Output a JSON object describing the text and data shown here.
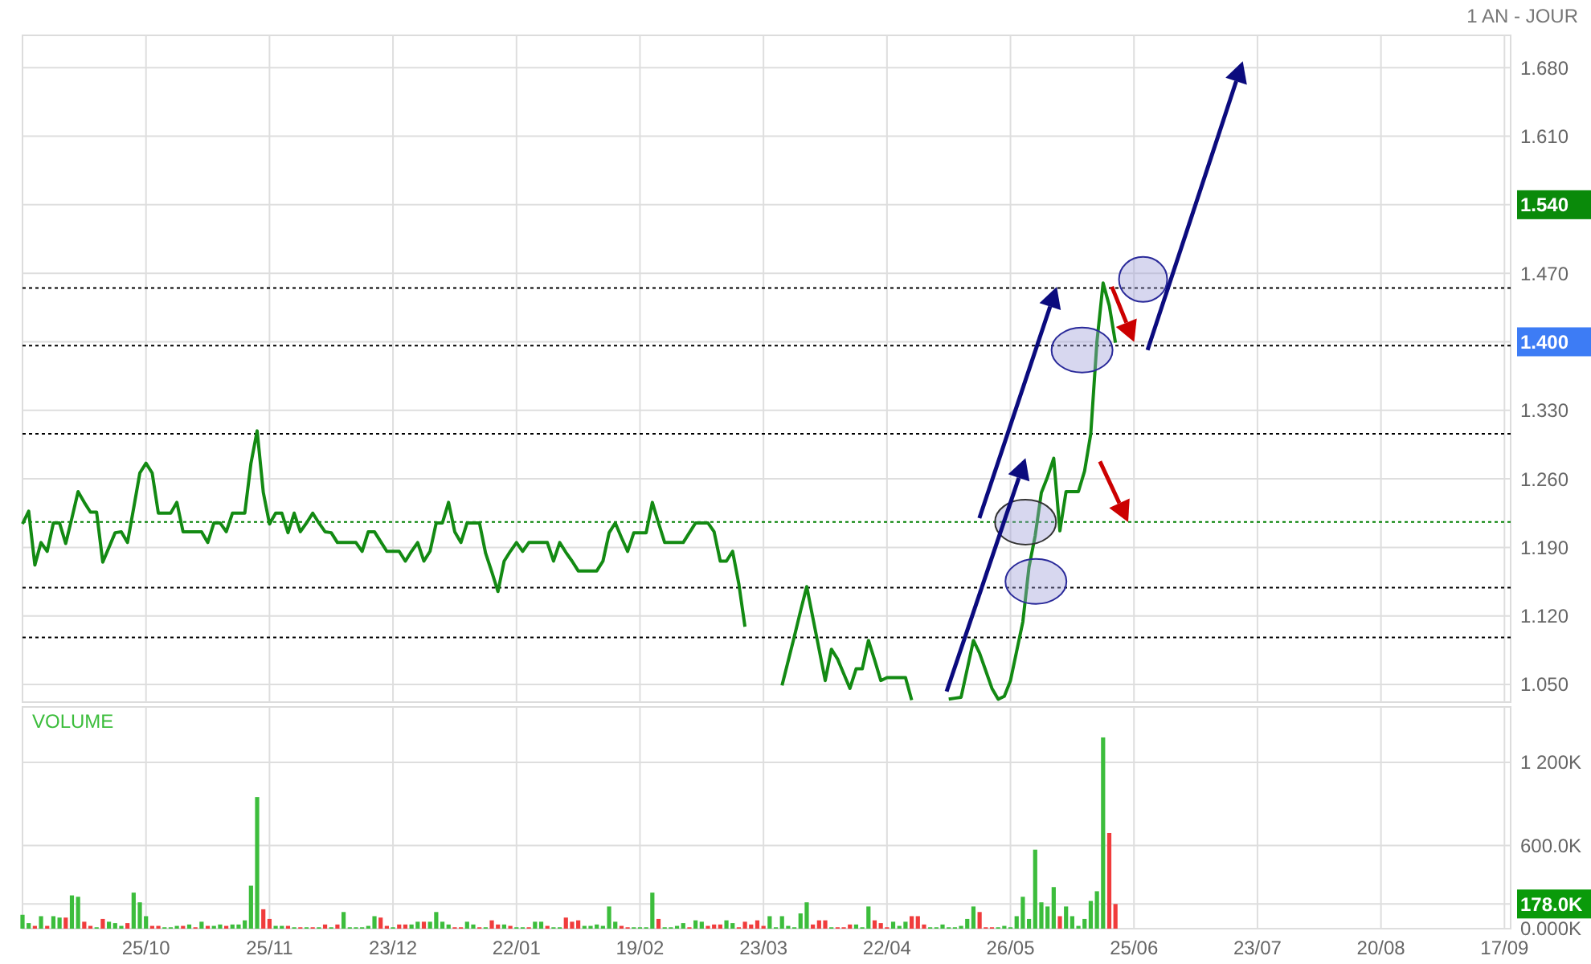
{
  "chart_data": [
    {
      "type": "line",
      "subtitle": "1 AN - JOUR",
      "color": "#138a13",
      "line_style": "solid",
      "grid": true,
      "tick_labels": "y",
      "categories": [
        null,
        null,
        null,
        null,
        null,
        null,
        null,
        null,
        null,
        null,
        null,
        null,
        null,
        null,
        null,
        null,
        null,
        null,
        null,
        null,
        null,
        null,
        null,
        null,
        null,
        null,
        null,
        null,
        null,
        null,
        null,
        null,
        null,
        null,
        null,
        null,
        null,
        null,
        null,
        null,
        null,
        null,
        null,
        null,
        null,
        null,
        null,
        null,
        null,
        null,
        null,
        null,
        null,
        null,
        null,
        null,
        null,
        null,
        null,
        null,
        null,
        null,
        null,
        null,
        null,
        null,
        null,
        null,
        null,
        null,
        null,
        null,
        null,
        null,
        null,
        null,
        null,
        null,
        null,
        null,
        null,
        null,
        null,
        null,
        null,
        null,
        null,
        null,
        null,
        null,
        null,
        null,
        null,
        null,
        null,
        null,
        null,
        null,
        null,
        null,
        null,
        null,
        null,
        null,
        null,
        null,
        null,
        null,
        null,
        null,
        null,
        null,
        null,
        null,
        null,
        null,
        null,
        null,
        null,
        null,
        null,
        null,
        null,
        null,
        null,
        null,
        null,
        null,
        null,
        null,
        null,
        null,
        null,
        null,
        null,
        null,
        null,
        null,
        null,
        null,
        null,
        null,
        null,
        null,
        null,
        null,
        null,
        null,
        null,
        null,
        null,
        null,
        null,
        null,
        null,
        null,
        null,
        null,
        null,
        null,
        null,
        null,
        null,
        null,
        null,
        null,
        null,
        null,
        null,
        null,
        null,
        null,
        null,
        null,
        null,
        null,
        null,
        null,
        null,
        null,
        null,
        null,
        null,
        null,
        null,
        null,
        null,
        null,
        null,
        null,
        null,
        null,
        null,
        null,
        null,
        null,
        null,
        null,
        null,
        null,
        null,
        null,
        null,
        null,
        null,
        null,
        null,
        null,
        null,
        null,
        null,
        null,
        null,
        null,
        null,
        null,
        null,
        null,
        null,
        null,
        null,
        null,
        null,
        null,
        null,
        null,
        null,
        null,
        null,
        null,
        null,
        null,
        null,
        null,
        null,
        null,
        null,
        null,
        null,
        null,
        null,
        null
      ],
      "ylim": [
        1.032,
        1.713
      ],
      "yticks": [
        {
          "value": 1.05,
          "label": "1.050"
        },
        {
          "value": 1.12,
          "label": "1.120"
        },
        {
          "value": 1.19,
          "label": "1.190"
        },
        {
          "value": 1.26,
          "label": "1.260"
        },
        {
          "value": 1.33,
          "label": "1.330"
        },
        {
          "value": 1.4,
          "label": "1.400"
        },
        {
          "value": 1.47,
          "label": "1.470"
        },
        {
          "value": 1.54,
          "label": "1.540"
        },
        {
          "value": 1.61,
          "label": "1.610"
        },
        {
          "value": 1.68,
          "label": "1.680"
        }
      ],
      "values": [
        1.214,
        1.227,
        1.172,
        1.195,
        1.186,
        1.215,
        1.215,
        1.194,
        1.22,
        1.247,
        1.236,
        1.226,
        1.226,
        1.175,
        1.19,
        1.205,
        1.206,
        1.195,
        1.23,
        1.266,
        1.276,
        1.266,
        1.225,
        1.225,
        1.225,
        1.236,
        1.206,
        1.206,
        1.206,
        1.206,
        1.195,
        1.215,
        1.215,
        1.206,
        1.225,
        1.225,
        1.225,
        1.276,
        1.309,
        1.246,
        1.214,
        1.225,
        1.225,
        1.205,
        1.225,
        1.206,
        1.215,
        1.225,
        1.215,
        1.206,
        1.205,
        1.195,
        1.195,
        1.195,
        1.195,
        1.186,
        1.206,
        1.206,
        1.196,
        1.186,
        1.186,
        1.186,
        1.176,
        1.186,
        1.195,
        1.176,
        1.186,
        1.215,
        1.215,
        1.236,
        1.206,
        1.195,
        1.215,
        1.215,
        1.215,
        1.184,
        1.165,
        1.145,
        1.176,
        1.186,
        1.195,
        1.186,
        1.195,
        1.195,
        1.195,
        1.195,
        1.176,
        1.195,
        1.185,
        1.176,
        1.166,
        1.166,
        1.166,
        1.166,
        1.176,
        1.205,
        1.215,
        1.2,
        1.186,
        1.205,
        1.205,
        1.205,
        1.236,
        1.215,
        1.195,
        1.195,
        1.195,
        1.195,
        1.205,
        1.215,
        1.215,
        1.215,
        1.206,
        1.176,
        1.176,
        1.186,
        1.153,
        1.109,
        null,
        null,
        null,
        null,
        null,
        1.049,
        1.074,
        1.099,
        1.125,
        1.15,
        1.118,
        1.086,
        1.054,
        1.086,
        1.076,
        1.061,
        1.046,
        1.066,
        1.066,
        1.095,
        1.075,
        1.054,
        1.057,
        1.057,
        1.057,
        1.057,
        1.034,
        null,
        null,
        null,
        null,
        null,
        1.035,
        1.036,
        1.037,
        1.066,
        1.095,
        1.082,
        1.064,
        1.046,
        1.035,
        1.038,
        1.054,
        1.084,
        1.114,
        1.17,
        1.202,
        1.246,
        1.262,
        1.281,
        1.207,
        1.247,
        1.247,
        1.247,
        1.268,
        1.306,
        1.4,
        1.46,
        1.437,
        1.399,
        null,
        null,
        null,
        null,
        null,
        null,
        null,
        null,
        null,
        null,
        null,
        null,
        null,
        null,
        null,
        null,
        null,
        null,
        null,
        null,
        null,
        null,
        null,
        null,
        null,
        null,
        null,
        null,
        null,
        null,
        null,
        null,
        null,
        null,
        null,
        null,
        null,
        null,
        null,
        null,
        null,
        null,
        null,
        null,
        null,
        null,
        null,
        null,
        null,
        null,
        null,
        null,
        null,
        null,
        null,
        null,
        null,
        null,
        null,
        null,
        null,
        null,
        null,
        null
      ],
      "ref_lines": [
        {
          "axis": "y",
          "value": 1.455,
          "color": "#000000",
          "line_style": "dotted"
        },
        {
          "axis": "y",
          "value": 1.396,
          "color": "#000000",
          "line_style": "dotted"
        },
        {
          "axis": "y",
          "value": 1.306,
          "color": "#000000",
          "line_style": "dotted"
        },
        {
          "axis": "y",
          "value": 1.216,
          "color": "#008000",
          "line_style": "dotted"
        },
        {
          "axis": "y",
          "value": 1.149,
          "color": "#000000",
          "line_style": "dotted"
        },
        {
          "axis": "y",
          "value": 1.098,
          "color": "#000000",
          "line_style": "dotted"
        }
      ]
    },
    {
      "type": "bar",
      "title": "VOLUME",
      "grid": true,
      "categories": [
        null,
        null,
        null,
        null,
        null,
        null,
        null,
        null,
        null,
        null,
        null,
        null,
        null,
        null,
        null,
        null,
        null,
        null,
        null,
        null,
        "25/10",
        null,
        null,
        null,
        null,
        null,
        null,
        null,
        null,
        null,
        null,
        null,
        null,
        null,
        null,
        null,
        null,
        null,
        null,
        null,
        "25/11",
        null,
        null,
        null,
        null,
        null,
        null,
        null,
        null,
        null,
        null,
        null,
        null,
        null,
        null,
        null,
        null,
        null,
        null,
        null,
        "23/12",
        null,
        null,
        null,
        null,
        null,
        null,
        null,
        null,
        null,
        null,
        null,
        null,
        null,
        null,
        null,
        null,
        null,
        null,
        null,
        "22/01",
        null,
        null,
        null,
        null,
        null,
        null,
        null,
        null,
        null,
        null,
        null,
        null,
        null,
        null,
        null,
        null,
        null,
        null,
        null,
        "19/02",
        null,
        null,
        null,
        null,
        null,
        null,
        null,
        null,
        null,
        null,
        null,
        null,
        null,
        null,
        null,
        null,
        null,
        null,
        null,
        "23/03",
        null,
        null,
        null,
        null,
        null,
        null,
        null,
        null,
        null,
        null,
        null,
        null,
        null,
        null,
        null,
        null,
        null,
        null,
        null,
        "22/04",
        null,
        null,
        null,
        null,
        null,
        null,
        null,
        null,
        null,
        null,
        null,
        null,
        null,
        null,
        null,
        null,
        null,
        null,
        null,
        "26/05",
        null,
        null,
        null,
        null,
        null,
        null,
        null,
        null,
        null,
        null,
        null,
        null,
        null,
        null,
        null,
        null,
        null,
        null,
        null,
        "25/06",
        null,
        null,
        null,
        null,
        null,
        null,
        null,
        null,
        null,
        null,
        null,
        null,
        null,
        null,
        null,
        null,
        null,
        null,
        null,
        "23/07",
        null,
        null,
        null,
        null,
        null,
        null,
        null,
        null,
        null,
        null,
        null,
        null,
        null,
        null,
        null,
        null,
        null,
        null,
        null,
        "20/08",
        null,
        null,
        null,
        null,
        null,
        null,
        null,
        null,
        null,
        null,
        null,
        null,
        null,
        null,
        null,
        null,
        null,
        null,
        null,
        "17/09",
        null
      ],
      "ylim": [
        0,
        1600
      ],
      "yticks": [
        {
          "value": 0,
          "label": "0.000K"
        },
        {
          "value": 178,
          "label": "178.0K"
        },
        {
          "value": 600,
          "label": "600.0K"
        },
        {
          "value": 1200,
          "label": "1 200K"
        }
      ],
      "values": [
        100,
        40,
        20,
        90,
        20,
        90,
        80,
        80,
        240,
        230,
        50,
        20,
        10,
        70,
        50,
        40,
        20,
        40,
        260,
        190,
        90,
        20,
        20,
        10,
        10,
        20,
        20,
        30,
        10,
        50,
        20,
        20,
        30,
        20,
        30,
        30,
        60,
        310,
        950,
        140,
        70,
        20,
        20,
        20,
        10,
        10,
        10,
        10,
        10,
        30,
        10,
        30,
        120,
        10,
        10,
        10,
        20,
        90,
        80,
        20,
        10,
        30,
        30,
        30,
        50,
        50,
        50,
        120,
        50,
        30,
        10,
        10,
        50,
        30,
        10,
        10,
        60,
        30,
        30,
        20,
        10,
        10,
        10,
        50,
        50,
        20,
        10,
        10,
        80,
        50,
        60,
        20,
        20,
        30,
        20,
        160,
        50,
        20,
        10,
        10,
        10,
        10,
        260,
        70,
        10,
        10,
        20,
        40,
        10,
        60,
        50,
        20,
        30,
        30,
        60,
        40,
        10,
        50,
        30,
        60,
        20,
        90,
        10,
        90,
        20,
        10,
        110,
        190,
        30,
        60,
        60,
        10,
        10,
        10,
        30,
        30,
        10,
        160,
        60,
        40,
        10,
        50,
        20,
        50,
        90,
        90,
        30,
        10,
        10,
        30,
        10,
        10,
        20,
        70,
        160,
        120,
        10,
        10,
        10,
        20,
        10,
        90,
        230,
        70,
        570,
        190,
        160,
        300,
        90,
        160,
        90,
        20,
        70,
        200,
        270,
        1380,
        690,
        178,
        null,
        null,
        null,
        null,
        null,
        null,
        null,
        null,
        null,
        null,
        null,
        null,
        null,
        null,
        null,
        null,
        null,
        null,
        null,
        null,
        null,
        null,
        null,
        null,
        null,
        null,
        null,
        null,
        null,
        null,
        null,
        null,
        null,
        null,
        null,
        null,
        null,
        null,
        null,
        null,
        null,
        null,
        null,
        null,
        null,
        null,
        null,
        null,
        null,
        null,
        null,
        null,
        null,
        null,
        null,
        null,
        null,
        null,
        null,
        null,
        null,
        null,
        null,
        null
      ],
      "colors": [
        "#3cbd3c",
        "#3cbd3c",
        "#f03c3c",
        "#3cbd3c",
        "#f03c3c",
        "#3cbd3c",
        "#3cbd3c",
        "#f03c3c",
        "#3cbd3c",
        "#3cbd3c",
        "#f03c3c",
        "#f03c3c",
        "#3cbd3c",
        "#f03c3c",
        "#3cbd3c",
        "#3cbd3c",
        "#3cbd3c",
        "#f03c3c",
        "#3cbd3c",
        "#3cbd3c",
        "#3cbd3c",
        "#f03c3c",
        "#f03c3c",
        "#3cbd3c",
        "#3cbd3c",
        "#3cbd3c",
        "#f03c3c",
        "#3cbd3c",
        "#f03c3c",
        "#3cbd3c",
        "#f03c3c",
        "#3cbd3c",
        "#3cbd3c",
        "#f03c3c",
        "#3cbd3c",
        "#3cbd3c",
        "#3cbd3c",
        "#3cbd3c",
        "#3cbd3c",
        "#f03c3c",
        "#f03c3c",
        "#3cbd3c",
        "#3cbd3c",
        "#f03c3c",
        "#3cbd3c",
        "#f03c3c",
        "#3cbd3c",
        "#f03c3c",
        "#3cbd3c",
        "#f03c3c",
        "#3cbd3c",
        "#f03c3c",
        "#3cbd3c",
        "#3cbd3c",
        "#3cbd3c",
        "#3cbd3c",
        "#3cbd3c",
        "#3cbd3c",
        "#f03c3c",
        "#f03c3c",
        "#3cbd3c",
        "#f03c3c",
        "#f03c3c",
        "#3cbd3c",
        "#3cbd3c",
        "#f03c3c",
        "#3cbd3c",
        "#3cbd3c",
        "#3cbd3c",
        "#3cbd3c",
        "#f03c3c",
        "#f03c3c",
        "#3cbd3c",
        "#3cbd3c",
        "#f03c3c",
        "#3cbd3c",
        "#f03c3c",
        "#f03c3c",
        "#3cbd3c",
        "#f03c3c",
        "#3cbd3c",
        "#3cbd3c",
        "#f03c3c",
        "#3cbd3c",
        "#3cbd3c",
        "#f03c3c",
        "#3cbd3c",
        "#3cbd3c",
        "#f03c3c",
        "#f03c3c",
        "#f03c3c",
        "#3cbd3c",
        "#3cbd3c",
        "#3cbd3c",
        "#3cbd3c",
        "#3cbd3c",
        "#3cbd3c",
        "#f03c3c",
        "#f03c3c",
        "#3cbd3c",
        "#3cbd3c",
        "#3cbd3c",
        "#3cbd3c",
        "#f03c3c",
        "#3cbd3c",
        "#3cbd3c",
        "#3cbd3c",
        "#3cbd3c",
        "#f03c3c",
        "#3cbd3c",
        "#3cbd3c",
        "#f03c3c",
        "#f03c3c",
        "#f03c3c",
        "#3cbd3c",
        "#3cbd3c",
        "#f03c3c",
        "#f03c3c",
        "#f03c3c",
        "#f03c3c",
        "#f03c3c",
        "#3cbd3c",
        "#3cbd3c",
        "#3cbd3c",
        "#3cbd3c",
        "#3cbd3c",
        "#3cbd3c",
        "#3cbd3c",
        "#f03c3c",
        "#f03c3c",
        "#f03c3c",
        "#3cbd3c",
        "#f03c3c",
        "#f03c3c",
        "#f03c3c",
        "#3cbd3c",
        "#3cbd3c",
        "#3cbd3c",
        "#f03c3c",
        "#f03c3c",
        "#f03c3c",
        "#3cbd3c",
        "#3cbd3c",
        "#3cbd3c",
        "#f03c3c",
        "#f03c3c",
        "#f03c3c",
        "#3cbd3c",
        "#3cbd3c",
        "#3cbd3c",
        "#3cbd3c",
        "#3cbd3c",
        "#3cbd3c",
        "#3cbd3c",
        "#3cbd3c",
        "#f03c3c",
        "#f03c3c",
        "#f03c3c",
        "#3cbd3c",
        "#3cbd3c",
        "#3cbd3c",
        "#3cbd3c",
        "#3cbd3c",
        "#3cbd3c",
        "#3cbd3c",
        "#3cbd3c",
        "#3cbd3c",
        "#3cbd3c",
        "#f03c3c",
        "#3cbd3c",
        "#3cbd3c",
        "#3cbd3c",
        "#3cbd3c",
        "#3cbd3c",
        "#3cbd3c",
        "#3cbd3c",
        "#f03c3c",
        "#f03c3c",
        null,
        null,
        null,
        null,
        null,
        null,
        null,
        null,
        null,
        null,
        null,
        null,
        null,
        null,
        null,
        null,
        null,
        null,
        null,
        null,
        null,
        null,
        null,
        null,
        null,
        null,
        null,
        null,
        null,
        null,
        null,
        null,
        null,
        null,
        null,
        null,
        null,
        null,
        null,
        null,
        null,
        null,
        null,
        null,
        null,
        null,
        null,
        null,
        null,
        null,
        null,
        null,
        null,
        null,
        null,
        null,
        null,
        null,
        null,
        null,
        null,
        null,
        null,
        null
      ]
    }
  ]
}
